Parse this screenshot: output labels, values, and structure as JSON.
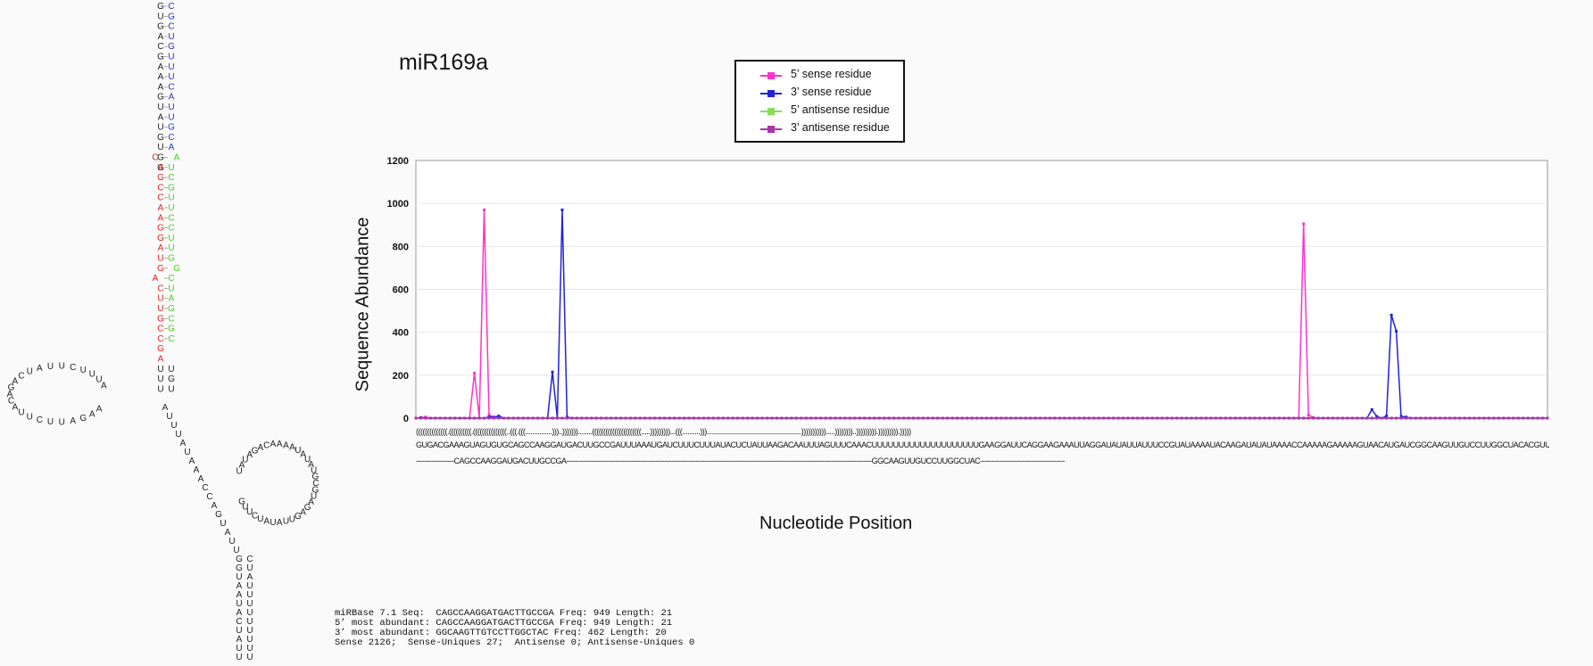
{
  "title": "miR169a",
  "legend": [
    {
      "label": "5’ sense residue",
      "color": "#ff33cc"
    },
    {
      "label": "3’ sense residue",
      "color": "#2222dd"
    },
    {
      "label": "5’ antisense residue",
      "color": "#88dd55"
    },
    {
      "label": "3’ antisense residue",
      "color": "#aa33aa"
    }
  ],
  "structure": "((((((((((((((.((((((((((.(((((((((((((((..(((.(((...............)))..)))))))........((((((((((((((((((((((.....)))))))))...(((..........))).....................................................))))))))))).....))))))))..))))))))).))))))))).)))))",
  "sequence": "GUGACGAAAGUAGUGUGCAGCCAAGGAUGACUUGCCGAUUUAAAUGAUCUUUCUUUAUACUCUAUUAAGACAAUUUAGUUUCAAACUUUUUUUUUUUUUUUUUUUUGAAGGAUUCAGGAAGAAAUUAGGAUAUAUUAUUUCCGUAUAAAAUACAAGAUAUAUAAAACCAAAAAGAAAAAGUAACAUGAUCGGCAAGUUGUCCUUGGCUACACGUUACUUUGUGUCGC",
  "mature_row": "-----------------CAGCCAAGGAUGACUUGCCGA-----------------------------------------------------------------------------------------------------------------------------------------GGCAAGUUGUCCUUGGCUAC--------------------------------------",
  "info_lines": [
    "miRBase 7.1 Seq:  CAGCCAAGGATGACTTGCCGA Freq: 949 Length: 21",
    "5’ most abundant: CAGCCAAGGATGACTTGCCGA Freq: 949 Length: 21",
    "3’ most abundant: GGCAAGTTGTCCTTGGCTAC Freq: 462 Length: 20",
    "Sense 2126;  Sense-Uniques 27;  Antisense 0; Antisense-Uniques 0"
  ],
  "chart_data": {
    "type": "line",
    "title": "miR169a",
    "xlabel": "Nucleotide Position",
    "ylabel": "Sequence Abundance",
    "ylim": [
      0,
      1200
    ],
    "yticks": [
      0,
      200,
      400,
      600,
      800,
      1000,
      1200
    ],
    "xlim": [
      1,
      233
    ],
    "grid": true,
    "legend_position": "top-center",
    "series": [
      {
        "name": "5’ sense residue",
        "color": "#ff33cc",
        "points": [
          [
            2,
            3
          ],
          [
            3,
            5
          ],
          [
            13,
            210
          ],
          [
            15,
            970
          ],
          [
            16,
            15
          ],
          [
            17,
            5
          ],
          [
            18,
            2
          ],
          [
            183,
            905
          ],
          [
            184,
            15
          ],
          [
            185,
            3
          ]
        ]
      },
      {
        "name": "3’ sense residue",
        "color": "#2222dd",
        "points": [
          [
            2,
            2
          ],
          [
            16,
            5
          ],
          [
            17,
            4
          ],
          [
            18,
            10
          ],
          [
            29,
            215
          ],
          [
            31,
            970
          ],
          [
            32,
            5
          ],
          [
            197,
            40
          ],
          [
            198,
            8
          ],
          [
            200,
            10
          ],
          [
            201,
            480
          ],
          [
            202,
            405
          ],
          [
            203,
            8
          ],
          [
            204,
            5
          ]
        ]
      },
      {
        "name": "5’ antisense residue",
        "color": "#88dd55",
        "points": []
      },
      {
        "name": "3’ antisense residue",
        "color": "#aa33aa",
        "points": []
      }
    ]
  },
  "hairpin": {
    "stem_left_black": "GUGACGAAAGUAUGUGG",
    "stem_right_blue": "CGCUGUUUCAUUGCA",
    "stem_left_red": "CAGCCAAGGAUGACUUGCCGA",
    "stem_right_green": "AUCGUUCCUUGGCUAGCGC",
    "stem_left_lower": "UUU",
    "stem_right_lower": "UGUACAUCUU",
    "loop_left": "AUUUCUUAUCAGACAUUCUUAGAA",
    "bottom_stem": "AUUUAUAAACCAGUAUUGGUAAUACUAUUUUUUUUUUUUUUGAGG",
    "loop_right": "UAUAGACAAAAUAUAUGCGUAGAGUUAUAUCUUG"
  }
}
